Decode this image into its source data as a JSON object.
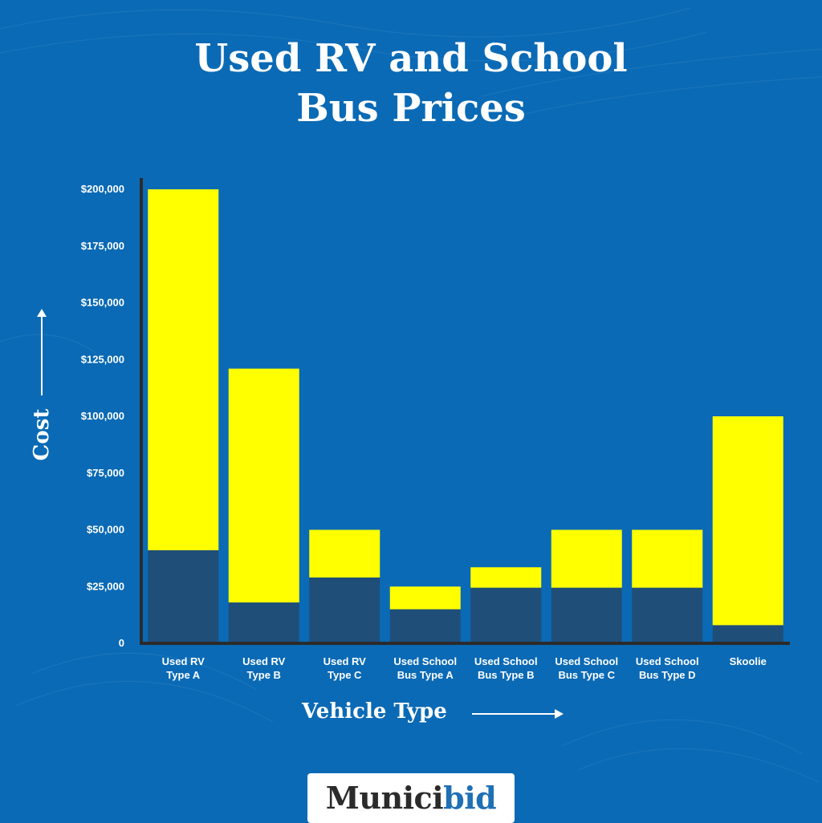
{
  "title": {
    "line1": "Used RV and School",
    "line2": "Bus Prices"
  },
  "logo": {
    "part1": "Munici",
    "part2": "bid"
  },
  "chart_data": {
    "type": "bar",
    "stacked": true,
    "categories": [
      [
        "Used RV",
        "Type A"
      ],
      [
        "Used RV",
        "Type B"
      ],
      [
        "Used RV",
        "Type C"
      ],
      [
        "Used School",
        "Bus Type A"
      ],
      [
        "Used School",
        "Bus Type B"
      ],
      [
        "Used School",
        "Bus Type C"
      ],
      [
        "Used School",
        "Bus Type D"
      ],
      [
        "Skoolie"
      ]
    ],
    "series": [
      {
        "values": [
          41000,
          18000,
          29000,
          15000,
          24500,
          24500,
          24500,
          8000
        ],
        "color": "#1f4e79"
      },
      {
        "values": [
          159000,
          103000,
          21000,
          10000,
          9000,
          25500,
          25500,
          92000
        ],
        "color": "#ffff00"
      }
    ],
    "xlabel": "Vehicle Type",
    "ylabel": "Cost",
    "ylim": [
      0,
      200000
    ],
    "yticks": [
      0,
      25000,
      50000,
      75000,
      100000,
      125000,
      150000,
      175000,
      200000
    ],
    "ytick_labels": [
      "0",
      "$25,000",
      "$50,000",
      "$75,000",
      "$100,000",
      "$125,000",
      "$150,000",
      "$175,000",
      "$200,000"
    ],
    "grid": false,
    "legend": "none"
  },
  "colors": {
    "background": "#0a6ab5",
    "axis": "#2b2b2b",
    "lower_segment": "#1f4e79",
    "upper_segment": "#ffff00"
  }
}
